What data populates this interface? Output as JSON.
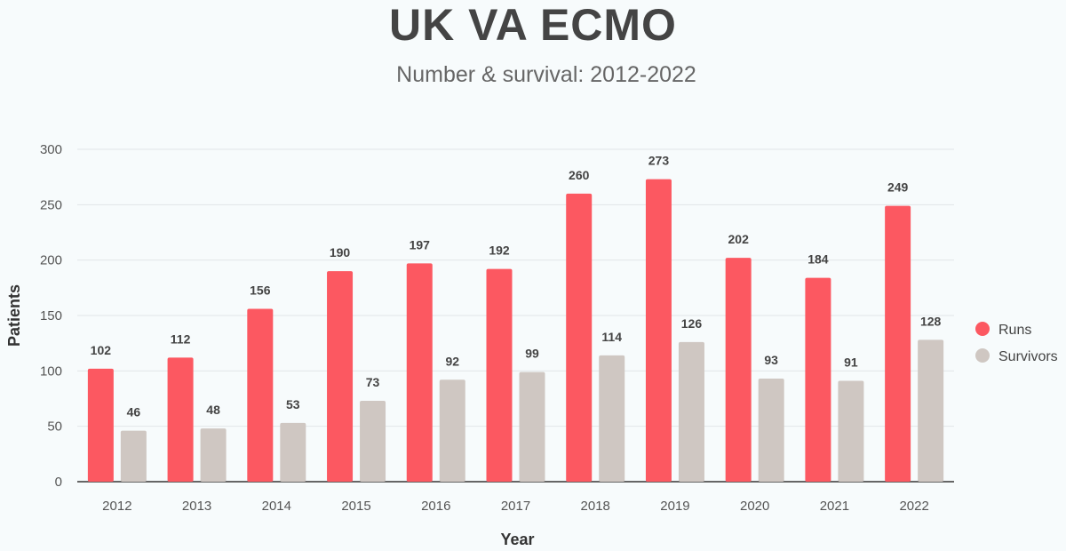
{
  "chart_data": {
    "type": "bar",
    "title": "UK VA ECMO",
    "subtitle": "Number & survival: 2012-2022",
    "xlabel": "Year",
    "ylabel": "Patients",
    "ylim": [
      0,
      300
    ],
    "yticks": [
      0,
      50,
      100,
      150,
      200,
      250,
      300
    ],
    "grid": true,
    "legend_position": "right",
    "categories": [
      "2012",
      "2013",
      "2014",
      "2015",
      "2016",
      "2017",
      "2018",
      "2019",
      "2020",
      "2021",
      "2022"
    ],
    "series": [
      {
        "name": "Runs",
        "color": "#fc5861",
        "values": [
          102,
          112,
          156,
          190,
          197,
          192,
          260,
          273,
          202,
          184,
          249
        ]
      },
      {
        "name": "Survivors",
        "color": "#cfc7c2",
        "values": [
          46,
          48,
          53,
          73,
          92,
          99,
          114,
          126,
          93,
          91,
          128
        ]
      }
    ]
  }
}
